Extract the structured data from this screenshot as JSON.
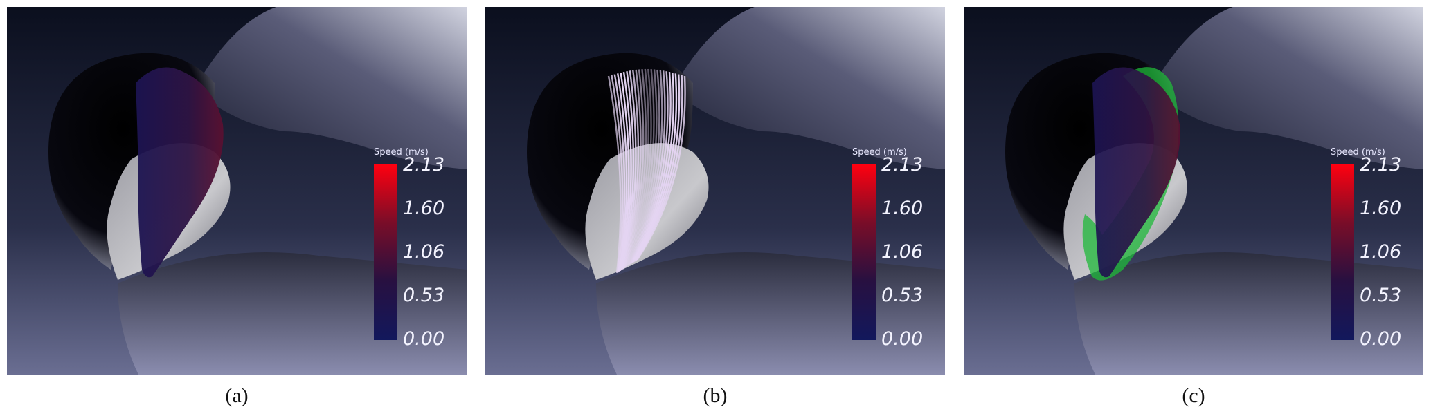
{
  "figure": {
    "panels": [
      {
        "caption": "(a)",
        "overlay": "surface",
        "colorbar": {
          "title": "Speed (m/s)",
          "ticks": [
            "2.13",
            "1.60",
            "1.06",
            "0.53",
            "0.00"
          ],
          "min": 0.0,
          "max": 2.13,
          "colors": [
            "#ff0010",
            "#7a0d28",
            "#281040",
            "#12185c"
          ]
        }
      },
      {
        "caption": "(b)",
        "overlay": "streamlines",
        "colorbar": {
          "title": "Speed (m/s)",
          "ticks": [
            "2.13",
            "1.60",
            "1.06",
            "0.53",
            "0.00"
          ],
          "min": 0.0,
          "max": 2.13,
          "colors": [
            "#ff0010",
            "#7a0d28",
            "#281040",
            "#12185c"
          ]
        }
      },
      {
        "caption": "(c)",
        "overlay": "surface-with-green-edge",
        "colorbar": {
          "title": "Speed (m/s)",
          "ticks": [
            "2.13",
            "1.60",
            "1.06",
            "0.53",
            "0.00"
          ],
          "min": 0.0,
          "max": 2.13,
          "colors": [
            "#ff0010",
            "#7a0d28",
            "#281040",
            "#12185c"
          ]
        }
      }
    ],
    "highlight_color": "#1fb83a"
  }
}
